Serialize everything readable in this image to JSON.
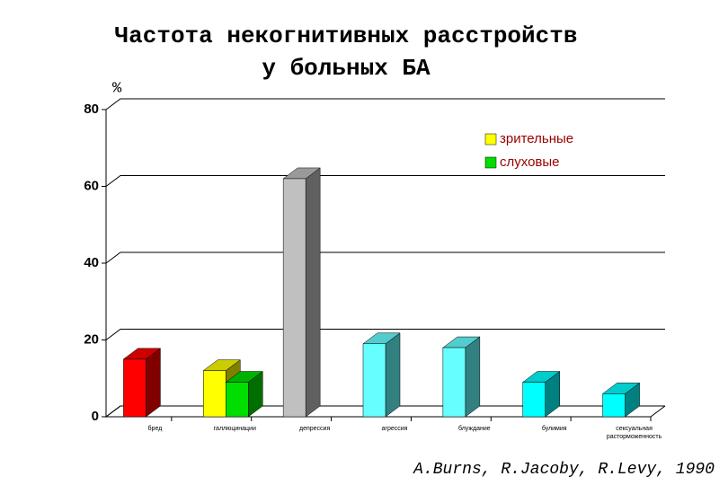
{
  "chart_data": {
    "type": "bar",
    "title": [
      "Частота некогнитивных расстройств",
      "у больных БА"
    ],
    "y_unit": "%",
    "source": "A.Burns, R.Jacoby, R.Levy, 1990",
    "categories": [
      "бред",
      "галлюцинации",
      "депрессия",
      "агрессия",
      "блуждание",
      "булимия",
      "сексуальная расторможенность"
    ],
    "values": [
      15,
      null,
      62,
      19,
      18,
      9,
      6
    ],
    "colors": [
      "#ff0000",
      null,
      "#c0c0c0",
      "#66ffff",
      "#66ffff",
      "#00ffff",
      "#00ffff"
    ],
    "series": [
      {
        "name": "зрительные",
        "color": "#ffff00",
        "values": [
          null,
          12,
          null,
          null,
          null,
          null,
          null
        ]
      },
      {
        "name": "слуховые",
        "color": "#00dd00",
        "values": [
          null,
          9,
          null,
          null,
          null,
          null,
          null
        ]
      }
    ],
    "ylim": [
      0,
      80
    ],
    "yticks": [
      0,
      20,
      40,
      60,
      80
    ],
    "grid": true
  }
}
